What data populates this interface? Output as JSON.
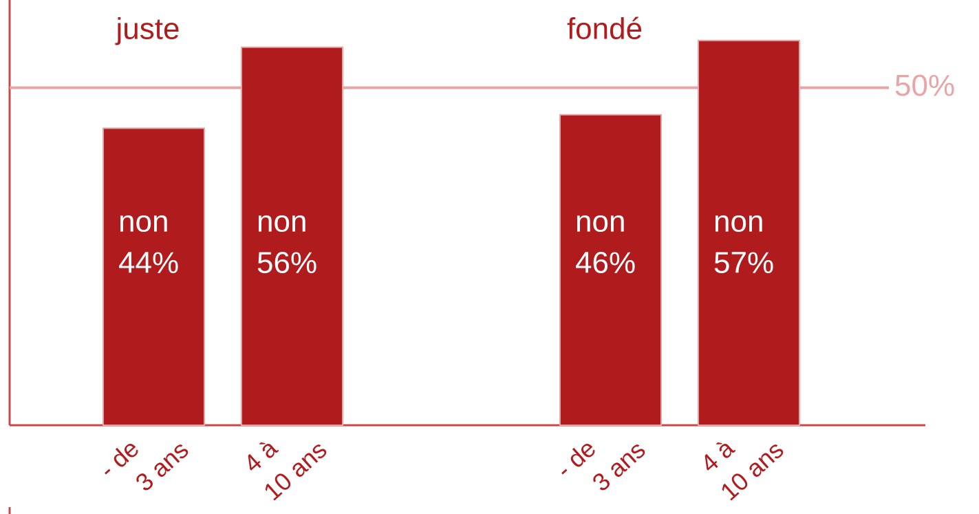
{
  "chart_data": {
    "type": "bar",
    "label": "non",
    "color": "#b01c1e",
    "ylim": [
      0,
      63
    ],
    "reference_line": {
      "value": 50,
      "label": "50%",
      "color": "#e8a5a6"
    },
    "groups": [
      {
        "name": "juste",
        "categories": [
          [
            "- de",
            "3 ans"
          ],
          [
            "4 à",
            "10 ans"
          ]
        ],
        "values": [
          44,
          56
        ],
        "value_labels": [
          "44%",
          "56%"
        ]
      },
      {
        "name": "fondé",
        "categories": [
          [
            "- de",
            "3 ans"
          ],
          [
            "4 à",
            "10 ans"
          ]
        ],
        "values": [
          46,
          57
        ],
        "value_labels": [
          "46%",
          "57%"
        ]
      }
    ]
  }
}
